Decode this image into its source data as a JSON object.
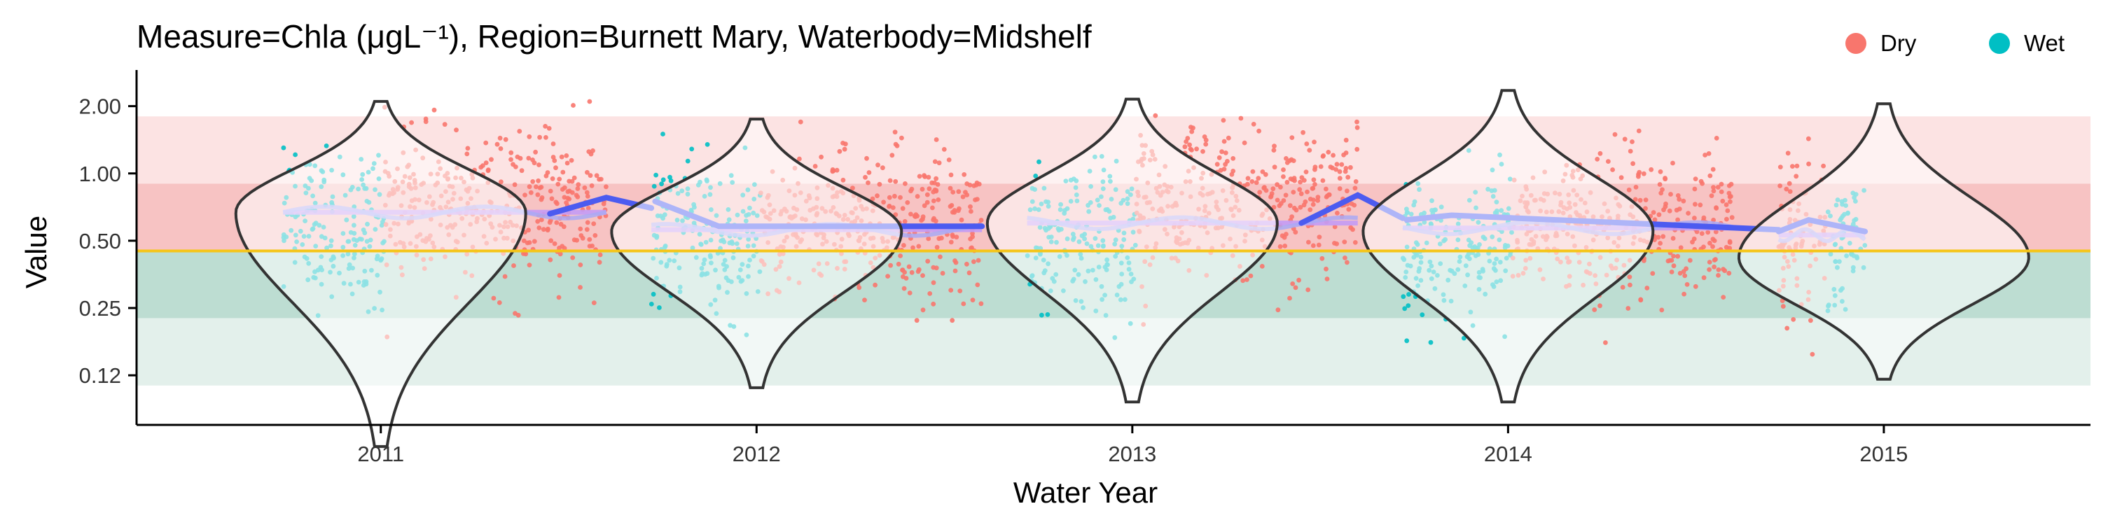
{
  "chart_data": {
    "type": "scatter",
    "title": "Measure=Chla (μgL⁻¹), Region=Burnett Mary, Waterbody=Midshelf",
    "xlabel": "Water Year",
    "ylabel": "Value",
    "y_scale": "log2",
    "ylim": [
      0.075,
      2.7
    ],
    "y_ticks": [
      {
        "value": 2.0,
        "label": "2.00"
      },
      {
        "value": 1.0,
        "label": "1.00"
      },
      {
        "value": 0.5,
        "label": "0.50"
      },
      {
        "value": 0.25,
        "label": "0.25"
      },
      {
        "value": 0.125,
        "label": "0.12"
      }
    ],
    "x_ticks": [
      "2011",
      "2012",
      "2013",
      "2014",
      "2015"
    ],
    "legend": {
      "position": "top-right",
      "entries": [
        {
          "name": "Dry",
          "color": "#F8766D"
        },
        {
          "name": "Wet",
          "color": "#00BFC4"
        }
      ]
    },
    "guideline": {
      "value": 0.45,
      "color": "#F5C518"
    },
    "background_bands": [
      {
        "from": 1.8,
        "to": 0.9,
        "color": "#FCE3E3"
      },
      {
        "from": 0.9,
        "to": 0.45,
        "color": "#F7C3C3"
      },
      {
        "from": 0.45,
        "to": 0.225,
        "color": "#BDDDD2"
      },
      {
        "from": 0.225,
        "to": 0.1125,
        "color": "#E3F0EB"
      }
    ],
    "years": [
      {
        "year": "2011",
        "seasons": [
          {
            "season": "Wet",
            "from": 2010.74,
            "to": 2011.01,
            "median": 0.58,
            "low": 0.09,
            "high": 1.8
          },
          {
            "season": "Dry",
            "from": 2011.01,
            "to": 2011.6,
            "median": 0.7,
            "low": 0.14,
            "high": 2.2
          }
        ],
        "violin": {
          "median": 0.67,
          "min": 0.06,
          "max": 2.1
        },
        "mean": 0.67,
        "trend": [
          {
            "x": 2011.45,
            "y": 0.66
          },
          {
            "x": 2011.6,
            "y": 0.78
          },
          {
            "x": 2011.72,
            "y": 0.7
          }
        ]
      },
      {
        "year": "2012",
        "seasons": [
          {
            "season": "Wet",
            "from": 2011.72,
            "to": 2012.01,
            "median": 0.52,
            "low": 0.15,
            "high": 1.5
          },
          {
            "season": "Dry",
            "from": 2012.01,
            "to": 2012.6,
            "median": 0.58,
            "low": 0.22,
            "high": 1.7
          }
        ],
        "violin": {
          "median": 0.55,
          "min": 0.11,
          "max": 1.75
        },
        "mean": 0.56,
        "trend": [
          {
            "x": 2011.73,
            "y": 0.75
          },
          {
            "x": 2011.9,
            "y": 0.58
          },
          {
            "x": 2012.6,
            "y": 0.58
          }
        ]
      },
      {
        "year": "2013",
        "seasons": [
          {
            "season": "Wet",
            "from": 2012.72,
            "to": 2013.01,
            "median": 0.5,
            "low": 0.1,
            "high": 1.8
          },
          {
            "season": "Dry",
            "from": 2013.01,
            "to": 2013.6,
            "median": 0.75,
            "low": 0.2,
            "high": 2.2
          }
        ],
        "violin": {
          "median": 0.6,
          "min": 0.095,
          "max": 2.15
        },
        "mean": 0.6,
        "trend": [
          {
            "x": 2013.45,
            "y": 0.6
          },
          {
            "x": 2013.6,
            "y": 0.8
          },
          {
            "x": 2013.72,
            "y": 0.63
          }
        ]
      },
      {
        "year": "2014",
        "seasons": [
          {
            "season": "Wet",
            "from": 2013.72,
            "to": 2014.01,
            "median": 0.45,
            "low": 0.1,
            "high": 2.4
          },
          {
            "season": "Dry",
            "from": 2014.01,
            "to": 2014.6,
            "median": 0.55,
            "low": 0.095,
            "high": 1.55
          }
        ],
        "violin": {
          "median": 0.55,
          "min": 0.095,
          "max": 2.35
        },
        "mean": 0.57,
        "trend": [
          {
            "x": 2013.73,
            "y": 0.62
          },
          {
            "x": 2013.85,
            "y": 0.65
          },
          {
            "x": 2014.72,
            "y": 0.56
          }
        ]
      },
      {
        "year": "2015",
        "seasons": [
          {
            "season": "Dry",
            "from": 2014.72,
            "to": 2014.85,
            "median": 0.55,
            "low": 0.13,
            "high": 1.8
          },
          {
            "season": "Wet",
            "from": 2014.85,
            "to": 2014.95,
            "median": 0.5,
            "low": 0.12,
            "high": 1.45
          }
        ],
        "violin": {
          "median": 0.42,
          "min": 0.12,
          "max": 2.05
        },
        "mean": 0.53,
        "trend": [
          {
            "x": 2014.72,
            "y": 0.55
          },
          {
            "x": 2014.8,
            "y": 0.62
          },
          {
            "x": 2014.95,
            "y": 0.55
          }
        ]
      }
    ],
    "colors": {
      "mean_line": "#C39BF5",
      "loess_line": "#A9A9F5",
      "trend_line": "#4C5BF0",
      "violin_stroke": "#333333",
      "axis": "#000000"
    },
    "grid": false
  }
}
